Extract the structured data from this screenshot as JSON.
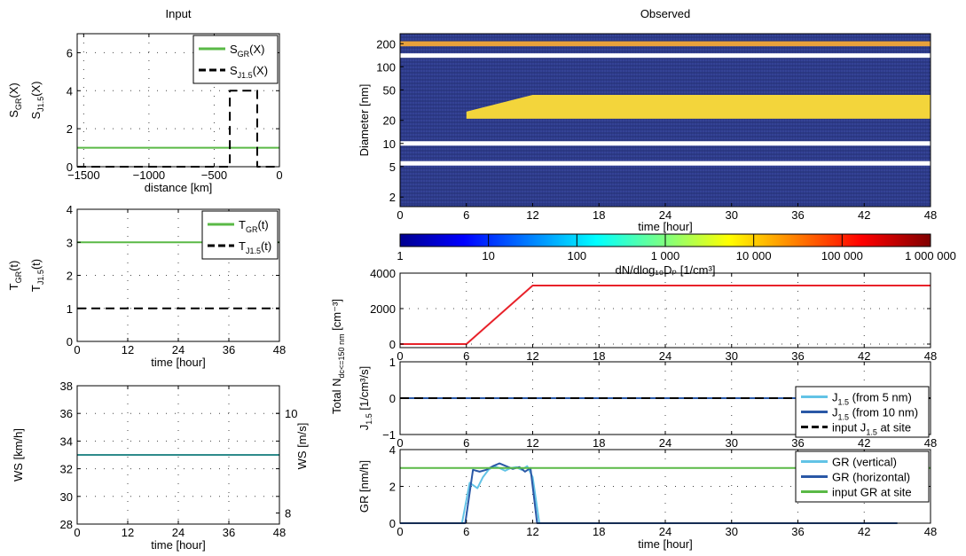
{
  "chart_data": [
    {
      "id": "s",
      "type": "line",
      "subplot_title": "Input",
      "xlabel": "distance [km]",
      "xlim": [
        -1550,
        0
      ],
      "ylim": [
        0,
        7
      ],
      "xticks": [
        -1500,
        -1000,
        -500,
        0
      ],
      "yticks": [
        0,
        2,
        4,
        6
      ],
      "ylabel_outer": {
        "base": "S",
        "sub": "GR",
        "tail": "(X)"
      },
      "ylabel_inner": {
        "base": "S",
        "sub": "J1.5",
        "tail": "(X)"
      },
      "legend": [
        {
          "base": "S",
          "sub": "GR",
          "tail": "(X)"
        },
        {
          "base": "S",
          "sub": "J1.5",
          "tail": "(X)"
        }
      ],
      "series": [
        {
          "name": "S_GR(X)",
          "color": "#5ab946",
          "dash": "solid",
          "x": [
            -1550,
            0
          ],
          "y": [
            1,
            1
          ]
        },
        {
          "name": "S_J1.5(X)",
          "color": "#000000",
          "dash": "dashed",
          "x": [
            -1550,
            -380,
            -380,
            -170,
            -170,
            0
          ],
          "y": [
            0,
            0,
            4,
            4,
            0,
            0
          ]
        }
      ]
    },
    {
      "id": "t",
      "type": "line",
      "xlabel": "time [hour]",
      "xlim": [
        0,
        48
      ],
      "ylim": [
        0,
        4
      ],
      "xticks": [
        0,
        12,
        24,
        36,
        48
      ],
      "yticks": [
        0,
        1,
        2,
        3,
        4
      ],
      "ylabel_outer": {
        "base": "T",
        "sub": "GR",
        "tail": "(t)"
      },
      "ylabel_inner": {
        "base": "T",
        "sub": "J1.5",
        "tail": "(t)"
      },
      "legend": [
        {
          "base": "T",
          "sub": "GR",
          "tail": "(t)"
        },
        {
          "base": "T",
          "sub": "J1.5",
          "tail": "(t)"
        }
      ],
      "series": [
        {
          "name": "T_GR(t)",
          "color": "#5ab946",
          "dash": "solid",
          "x": [
            0,
            48
          ],
          "y": [
            3,
            3
          ]
        },
        {
          "name": "T_J1.5(t)",
          "color": "#000000",
          "dash": "dashed",
          "x": [
            0,
            48
          ],
          "y": [
            1,
            1
          ]
        }
      ]
    },
    {
      "id": "ws",
      "type": "line",
      "xlabel": "time [hour]",
      "xlim": [
        0,
        48
      ],
      "ylim": [
        28,
        38
      ],
      "xticks": [
        0,
        12,
        24,
        36,
        48
      ],
      "yticks": [
        28,
        30,
        32,
        34,
        36,
        38
      ],
      "ylabel": "WS [km/h]",
      "y2label": "WS [m/s]",
      "y2ticks": [
        8,
        10
      ],
      "series": [
        {
          "name": "WS",
          "color": "#2e8b8b",
          "dash": "solid",
          "x": [
            0,
            48
          ],
          "y": [
            33,
            33
          ]
        }
      ]
    },
    {
      "id": "heat",
      "type": "heatmap",
      "subplot_title": "Observed",
      "xlabel": "time [hour]",
      "ylabel": "Diameter [nm]",
      "xlim": [
        0,
        48
      ],
      "xticks": [
        0,
        6,
        12,
        18,
        24,
        30,
        36,
        42,
        48
      ],
      "ylim_nm": [
        1.5,
        270
      ],
      "yscale": "log",
      "yticks": [
        2,
        5,
        10,
        20,
        50,
        100,
        200
      ],
      "background_color": "#2e3a8c",
      "white_bands_nm": [
        5.5,
        10,
        140
      ],
      "orange_band_nm": [
        185,
        215
      ],
      "yellow_region": {
        "t_start": 6,
        "t_knee": 12,
        "t_end": 48,
        "lower_nm": 21,
        "upper_start_nm": 26,
        "upper_nm": 43
      },
      "colorbar": {
        "label": "dN/dlog₁₀Dₚ [1/cm³]",
        "ticks": [
          "1",
          "10",
          "100",
          "1 000",
          "10 000",
          "100 000",
          "1 000 000"
        ]
      }
    },
    {
      "id": "total",
      "type": "line",
      "ylabel": "Total N",
      "ylabel_sub": "dc<=150 nm",
      "ylabel_unit": "[cm⁻³]",
      "xlim": [
        0,
        48
      ],
      "ylim": [
        -200,
        4000
      ],
      "xticks": [
        0,
        6,
        12,
        18,
        24,
        30,
        36,
        42,
        48
      ],
      "yticks": [
        0,
        2000,
        4000
      ],
      "series": [
        {
          "name": "Total N",
          "color": "#e8222a",
          "dash": "solid",
          "x": [
            0,
            6,
            12,
            48
          ],
          "y": [
            0,
            0,
            3300,
            3300
          ]
        }
      ]
    },
    {
      "id": "j",
      "type": "line",
      "ylabel": "J",
      "ylabel_sub": "1.5",
      "ylabel_unit": " [1/cm³/s]",
      "xlim": [
        0,
        48
      ],
      "ylim": [
        -1,
        1
      ],
      "xticks": [
        0,
        6,
        12,
        18,
        24,
        30,
        36,
        42,
        48
      ],
      "yticks": [
        -1,
        0,
        1
      ],
      "legend": [
        {
          "base": "J",
          "sub": "1.5",
          "tail": " (from 5 nm)"
        },
        {
          "base": "J",
          "sub": "1.5",
          "tail": " (from 10 nm)"
        },
        {
          "base": "input J",
          "sub": "1.5",
          "tail": " at site"
        }
      ],
      "series": [
        {
          "name": "J1.5 (from 5 nm)",
          "color": "#62c3e6",
          "dash": "solid",
          "x": [
            0,
            48
          ],
          "y": [
            0,
            0
          ]
        },
        {
          "name": "J1.5 (from 10 nm)",
          "color": "#2a58a6",
          "dash": "solid",
          "x": [
            0,
            48
          ],
          "y": [
            0,
            0
          ]
        },
        {
          "name": "input J1.5 at site",
          "color": "#000000",
          "dash": "dashed",
          "x": [
            0,
            48
          ],
          "y": [
            0,
            0
          ]
        }
      ]
    },
    {
      "id": "gr",
      "type": "line",
      "xlabel": "time [hour]",
      "ylabel": "GR [nm/h]",
      "xlim": [
        0,
        48
      ],
      "ylim": [
        0,
        4
      ],
      "xticks": [
        0,
        6,
        12,
        18,
        24,
        30,
        36,
        42,
        48
      ],
      "yticks": [
        0,
        2,
        4
      ],
      "legend": [
        {
          "base": "GR (vertical)",
          "sub": "",
          "tail": ""
        },
        {
          "base": "GR (horizontal)",
          "sub": "",
          "tail": ""
        },
        {
          "base": "input GR at site",
          "sub": "",
          "tail": ""
        }
      ],
      "series": [
        {
          "name": "GR (vertical)",
          "color": "#62c3e6",
          "dash": "solid",
          "x": [
            0,
            5.6,
            6.3,
            7,
            7.5,
            8,
            8.5,
            9,
            9.5,
            10,
            10.5,
            11,
            11.5,
            12,
            12.6,
            45
          ],
          "y": [
            0,
            0,
            2.2,
            1.9,
            2.5,
            2.9,
            3.1,
            3.0,
            2.85,
            3.0,
            3.05,
            2.9,
            3.1,
            2.5,
            0,
            0
          ]
        },
        {
          "name": "GR (horizontal)",
          "color": "#2a58a6",
          "dash": "solid",
          "x": [
            0,
            5.9,
            6.6,
            7.2,
            7.8,
            8.4,
            9,
            9.6,
            10.2,
            10.8,
            11.3,
            11.8,
            12.4,
            45
          ],
          "y": [
            0,
            0,
            2.9,
            2.8,
            2.9,
            3.1,
            3.25,
            3.1,
            2.95,
            3.05,
            2.8,
            3.0,
            0,
            0
          ]
        },
        {
          "name": "input GR at site",
          "color": "#5ab946",
          "dash": "solid",
          "x": [
            0,
            48
          ],
          "y": [
            3,
            3
          ]
        }
      ]
    }
  ]
}
